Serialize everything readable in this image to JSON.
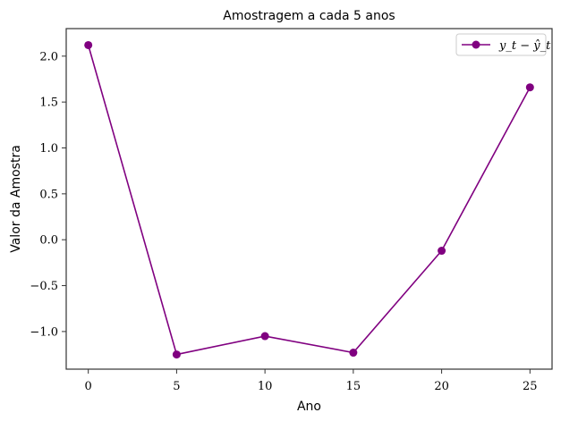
{
  "chart_data": {
    "type": "line",
    "title": "Amostragem a cada 5 anos",
    "xlabel": "Ano",
    "ylabel": "Valor da Amostra",
    "xlim": [
      -1.25,
      26.25
    ],
    "ylim": [
      -1.41,
      2.3
    ],
    "xticks": [
      0,
      5,
      10,
      15,
      20,
      25
    ],
    "yticks": [
      2.0,
      1.5,
      1.0,
      0.5,
      0.0,
      -0.5,
      -1.0
    ],
    "ytick_labels": [
      "2.0",
      "1.5",
      "1.0",
      "0.5",
      "0.0",
      "−0.5",
      "−1.0"
    ],
    "grid": false,
    "legend_position": "top-right",
    "series": [
      {
        "name": "y_t − ŷ_t",
        "color": "#800080",
        "marker": "circle",
        "x": [
          0,
          5,
          10,
          15,
          20,
          25
        ],
        "y": [
          2.12,
          -1.25,
          -1.05,
          -1.23,
          -0.12,
          1.66
        ]
      }
    ]
  }
}
